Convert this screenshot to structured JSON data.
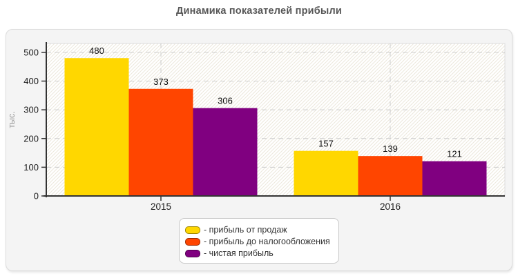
{
  "title": "Динамика показателей прибыли",
  "chart_data": {
    "type": "bar",
    "categories": [
      "2015",
      "2016"
    ],
    "series": [
      {
        "name": "- прибыль от продаж",
        "color": "#ffd700",
        "values": [
          480,
          157
        ]
      },
      {
        "name": "- прибыль до налогообложения",
        "color": "#ff4500",
        "values": [
          373,
          139
        ]
      },
      {
        "name": "- чистая прибыль",
        "color": "#800080",
        "values": [
          306,
          121
        ]
      }
    ],
    "xlabel": "",
    "ylabel": "тыс.",
    "yticks": [
      0,
      100,
      200,
      300,
      400,
      500
    ],
    "ylim": [
      0,
      531
    ],
    "grid": true,
    "value_labels": true,
    "legend_position": "bottom-center"
  },
  "style": {
    "panel_bg": "#f4f4f4",
    "panel_border": "#dcdcdc",
    "plot_border": "#dddddd",
    "hatch_color": "#ece8dc",
    "grid_color": "#cccccc",
    "axis_color": "#333333",
    "tick_label_color": "#1a1a1a",
    "value_label_color": "#111111",
    "ylabel_color": "#999999",
    "title_color": "#555555",
    "legend_bg": "#ffffff",
    "legend_border": "#c8c8c8"
  }
}
